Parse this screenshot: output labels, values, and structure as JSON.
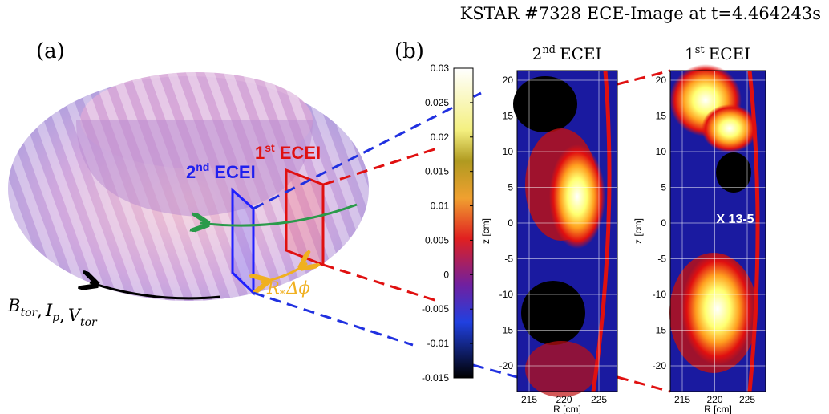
{
  "title": "KSTAR #7328 ECE-Image at t=4.464243s",
  "panel_a": {
    "label": "(a)",
    "second_ecei": {
      "number": "2",
      "suffix": "nd",
      "name": "ECEI"
    },
    "first_ecei": {
      "number": "1",
      "suffix": "st",
      "name": "ECEI"
    },
    "flow": [
      {
        "base": "B",
        "sub": "tor"
      },
      {
        "base": "I",
        "sub": "p"
      },
      {
        "base": "V",
        "sub": "tor"
      }
    ],
    "separator": ",",
    "shift": {
      "base": "R",
      "sub": "*",
      "rest": "Δϕ"
    }
  },
  "panel_b": {
    "label": "(b)",
    "colorbar_ticks": [
      0.03,
      0.025,
      0.02,
      0.015,
      0.01,
      0.005,
      0,
      -0.005,
      -0.01,
      -0.015
    ],
    "images": [
      {
        "number": "2",
        "suffix": "nd",
        "name": "ECEI",
        "y_label": "z [cm]",
        "x_label": "R [cm]",
        "yticks": [
          20,
          15,
          10,
          5,
          0,
          -5,
          -10,
          -15,
          -20
        ],
        "xticks": [
          215,
          220,
          225
        ]
      },
      {
        "number": "1",
        "suffix": "st",
        "name": "ECEI",
        "y_label": "z [cm]",
        "x_label": "R [cm]",
        "yticks": [
          20,
          15,
          10,
          5,
          0,
          -5,
          -10,
          -15,
          -20
        ],
        "xticks": [
          215,
          220,
          225
        ],
        "annotation": "X 13-5"
      }
    ]
  }
}
